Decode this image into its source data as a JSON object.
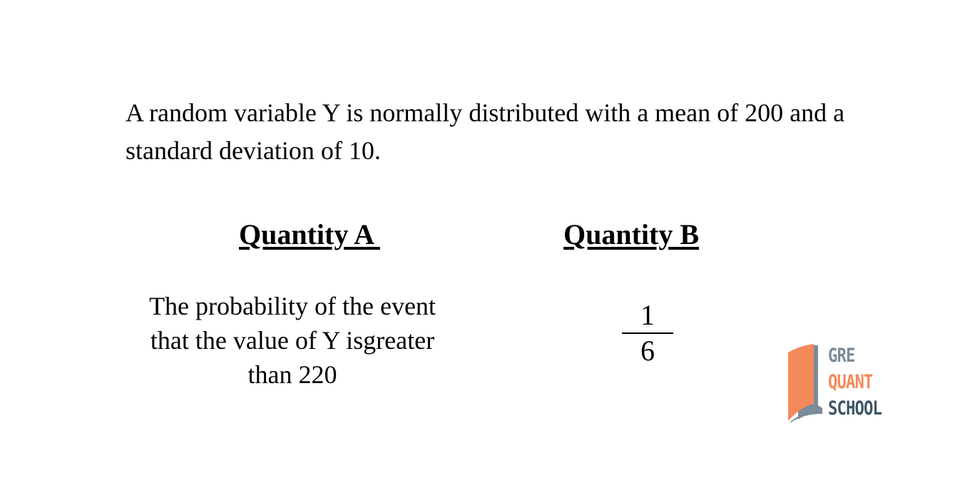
{
  "stem": "A random variable Y is normally distributed with a mean of 200 and a standard deviation of 10.",
  "quantity_a": {
    "heading": "Quantity A ",
    "text": "The probability of the event that the value of Y isgreater than 220"
  },
  "quantity_b": {
    "heading": "Quantity B",
    "numerator": "1",
    "denominator": "6"
  },
  "logo": {
    "line1": "GRE",
    "line2": "QUANT",
    "line3": "SCHOOL",
    "colors": {
      "orange": "#f4895a",
      "gray": "#7b8b99",
      "dark": "#3d5566"
    }
  }
}
